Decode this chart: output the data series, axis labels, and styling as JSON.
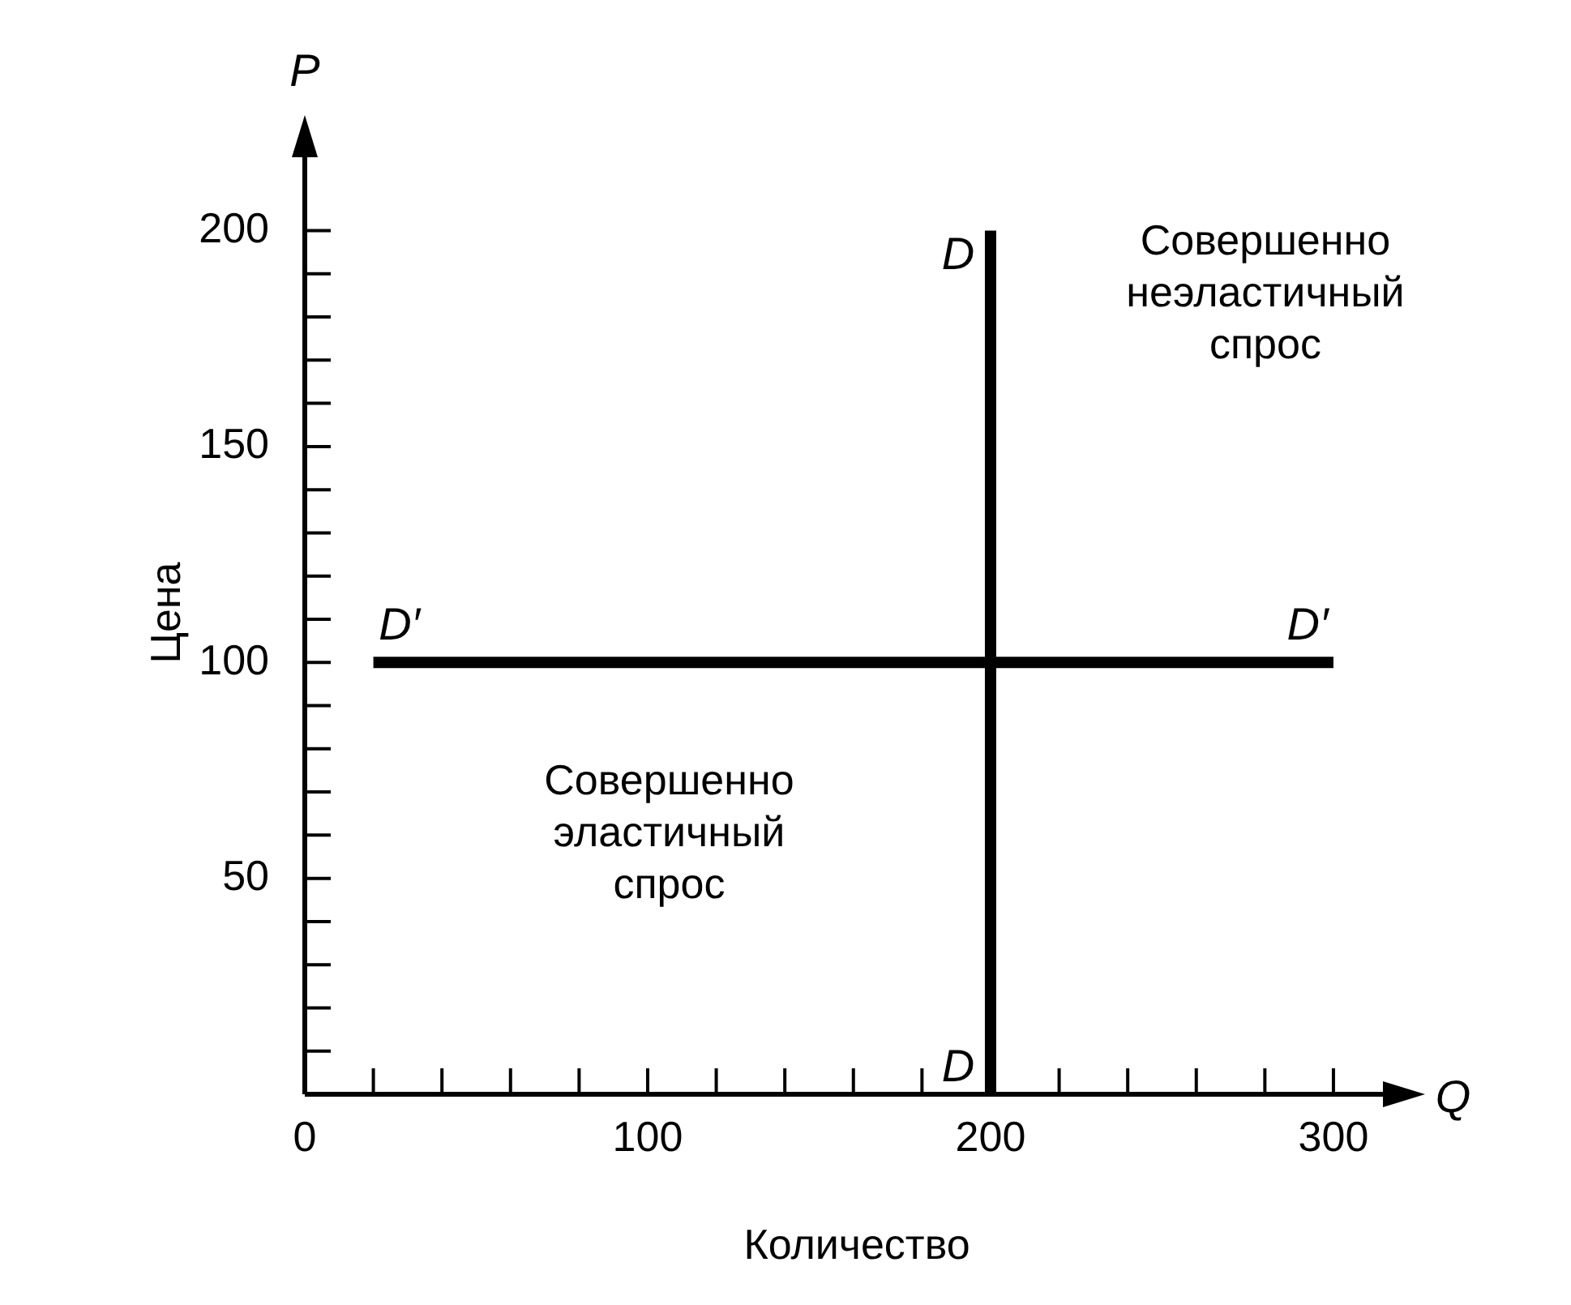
{
  "chart_data": {
    "type": "line",
    "xlabel": "Количество",
    "ylabel": "Цена",
    "xlim": [
      0,
      322
    ],
    "ylim": [
      0,
      223
    ],
    "xticks": [
      {
        "value": 0,
        "label": "0"
      },
      {
        "value": 20,
        "label": null
      },
      {
        "value": 40,
        "label": null
      },
      {
        "value": 60,
        "label": null
      },
      {
        "value": 80,
        "label": null
      },
      {
        "value": 100,
        "label": "100"
      },
      {
        "value": 120,
        "label": null
      },
      {
        "value": 140,
        "label": null
      },
      {
        "value": 160,
        "label": null
      },
      {
        "value": 180,
        "label": null
      },
      {
        "value": 200,
        "label": "200"
      },
      {
        "value": 220,
        "label": null
      },
      {
        "value": 240,
        "label": null
      },
      {
        "value": 260,
        "label": null
      },
      {
        "value": 280,
        "label": null
      },
      {
        "value": 300,
        "label": "300"
      }
    ],
    "yticks": [
      {
        "value": 10,
        "label": null
      },
      {
        "value": 20,
        "label": null
      },
      {
        "value": 30,
        "label": null
      },
      {
        "value": 40,
        "label": null
      },
      {
        "value": 50,
        "label": "50"
      },
      {
        "value": 60,
        "label": null
      },
      {
        "value": 70,
        "label": null
      },
      {
        "value": 80,
        "label": null
      },
      {
        "value": 90,
        "label": null
      },
      {
        "value": 100,
        "label": "100"
      },
      {
        "value": 110,
        "label": null
      },
      {
        "value": 120,
        "label": null
      },
      {
        "value": 130,
        "label": null
      },
      {
        "value": 140,
        "label": null
      },
      {
        "value": 150,
        "label": "150"
      },
      {
        "value": 160,
        "label": null
      },
      {
        "value": 170,
        "label": null
      },
      {
        "value": 180,
        "label": null
      },
      {
        "value": 190,
        "label": null
      },
      {
        "value": 200,
        "label": "200"
      }
    ],
    "series": [
      {
        "color": "#000000",
        "x": [
          200,
          200
        ],
        "values": [
          0,
          200
        ]
      },
      {
        "color": "#000000",
        "x": [
          20,
          300
        ],
        "values": [
          100,
          100
        ]
      }
    ],
    "annotations": [
      "P",
      "Q",
      {
        "text": "D",
        "x": 200,
        "y": 200
      },
      {
        "text": "D",
        "x": 200,
        "y": 0
      },
      {
        "text": "D′",
        "x": 20,
        "y": 100
      },
      {
        "text": "D′",
        "x": 300,
        "y": 100
      },
      "Совершенно\nнеэластичный\nспрос",
      "Совершенно\nэластичный\nспрос"
    ],
    "grid": false,
    "legend": false,
    "marker": "none",
    "line_style": "solid"
  }
}
